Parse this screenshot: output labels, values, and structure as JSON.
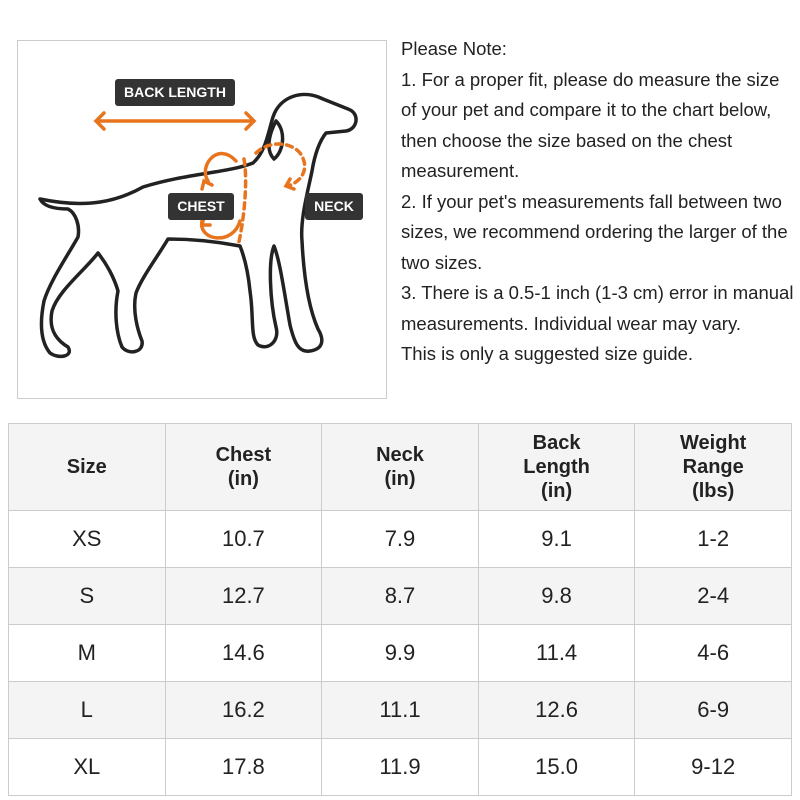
{
  "figure": {
    "labels": {
      "back_length": "BACK LENGTH",
      "chest": "CHEST",
      "neck": "NECK"
    }
  },
  "note": {
    "heading": "Please Note:",
    "items": [
      "1. For a proper fit, please do measure the size of your pet and compare it to the chart below, then choose the size based on the chest measurement.",
      "2. If your pet's measurements fall between two sizes, we recommend ordering the larger of the two sizes.",
      "3. There is a 0.5-1 inch (1-3 cm) error in manual measurements. Individual wear may vary.",
      "This is only a suggested size guide."
    ]
  },
  "table": {
    "header": [
      "Size",
      "Chest\n(in)",
      "Neck\n(in)",
      "Back\nLength\n(in)",
      "Weight\nRange\n(lbs)"
    ],
    "rows": [
      [
        "XS",
        "10.7",
        "7.9",
        "9.1",
        "1-2"
      ],
      [
        "S",
        "12.7",
        "8.7",
        "9.8",
        "2-4"
      ],
      [
        "M",
        "14.6",
        "9.9",
        "11.4",
        "4-6"
      ],
      [
        "L",
        "16.2",
        "11.1",
        "12.6",
        "6-9"
      ],
      [
        "XL",
        "17.8",
        "11.9",
        "15.0",
        "9-12"
      ]
    ]
  }
}
